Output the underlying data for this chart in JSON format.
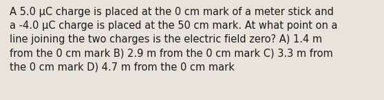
{
  "text": "A 5.0 μC charge is placed at the 0 cm mark of a meter stick and\na -4.0 μC charge is placed at the 50 cm mark. At what point on a\nline joining the two charges is the electric field zero? A) 1.4 m\nfrom the 0 cm mark B) 2.9 m from the 0 cm mark C) 3.3 m from\nthe 0 cm mark D) 4.7 m from the 0 cm mark",
  "background_color": "#e8e4dc",
  "text_color": "#1a1a1a",
  "font_size": 10.5,
  "fig_width": 5.58,
  "fig_height": 1.46,
  "dpi": 100
}
